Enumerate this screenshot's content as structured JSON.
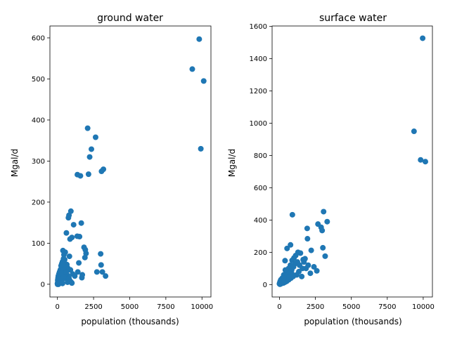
{
  "chart_data": [
    {
      "type": "scatter",
      "title": "ground water",
      "xlabel": "population (thousands)",
      "ylabel": "Mgal/d",
      "xlim": [
        -520,
        10620
      ],
      "ylim": [
        -31,
        629
      ],
      "xticks": [
        0,
        2500,
        5000,
        7500,
        10000
      ],
      "xtick_labels": [
        "0",
        "2500",
        "5000",
        "7500",
        "10000"
      ],
      "yticks": [
        0,
        100,
        200,
        300,
        400,
        500,
        600
      ],
      "ytick_labels": [
        "0",
        "100",
        "200",
        "300",
        "400",
        "500",
        "600"
      ],
      "grid": false,
      "marker_color": "#1f77b4",
      "x": [
        9810,
        9330,
        10120,
        9920,
        2090,
        2640,
        2350,
        2230,
        3180,
        3050,
        2150,
        1380,
        1590,
        930,
        800,
        760,
        1650,
        1120,
        620,
        1370,
        1530,
        1000,
        870,
        1840,
        1930,
        1980,
        1900,
        2990,
        3020,
        3110,
        2730,
        3330,
        1480,
        1720,
        1690,
        1410,
        380,
        540,
        830,
        450,
        300,
        280,
        200,
        150,
        100,
        60,
        40,
        20,
        500,
        650,
        700,
        900,
        1050,
        1200,
        250,
        350,
        420,
        480,
        520,
        580,
        620,
        680,
        720,
        760,
        820,
        880,
        950,
        1000,
        180,
        120,
        80,
        30,
        0,
        220,
        260,
        330,
        390,
        440,
        560,
        610,
        140,
        90,
        50,
        10,
        70,
        160,
        240,
        310,
        460,
        510,
        380,
        300,
        200,
        150,
        600,
        700,
        800,
        350
      ],
      "y": [
        597,
        524,
        495,
        330,
        380,
        358,
        329,
        310,
        280,
        275,
        268,
        267,
        264,
        178,
        168,
        162,
        149,
        145,
        125,
        117,
        116,
        114,
        110,
        90,
        84,
        75,
        65,
        74,
        47,
        30,
        30,
        20,
        52,
        23,
        16,
        30,
        82,
        78,
        68,
        72,
        50,
        40,
        35,
        30,
        25,
        20,
        15,
        10,
        60,
        48,
        40,
        35,
        25,
        20,
        45,
        55,
        62,
        52,
        44,
        38,
        30,
        22,
        18,
        12,
        10,
        8,
        5,
        3,
        28,
        18,
        12,
        6,
        2,
        33,
        38,
        42,
        48,
        36,
        26,
        16,
        8,
        5,
        2,
        0,
        0,
        4,
        6,
        10,
        14,
        20,
        24,
        28,
        12,
        3,
        30,
        5,
        15,
        2
      ]
    },
    {
      "type": "scatter",
      "title": "surface water",
      "xlabel": "population (thousands)",
      "ylabel": "Mgal/d",
      "xlim": [
        -510,
        10640
      ],
      "ylim": [
        -77,
        1603
      ],
      "xticks": [
        0,
        2500,
        5000,
        7500,
        10000
      ],
      "xtick_labels": [
        "0",
        "2500",
        "5000",
        "7500",
        "10000"
      ],
      "yticks": [
        0,
        200,
        400,
        600,
        800,
        1000,
        1200,
        1400,
        1600
      ],
      "ytick_labels": [
        "0",
        "200",
        "400",
        "600",
        "800",
        "1000",
        "1200",
        "1400",
        "1600"
      ],
      "grid": false,
      "marker_color": "#1f77b4",
      "x": [
        9960,
        9360,
        9820,
        10150,
        3070,
        900,
        3320,
        2680,
        2900,
        2970,
        1930,
        1950,
        3020,
        3180,
        2210,
        770,
        530,
        390,
        1650,
        1460,
        1290,
        1130,
        1010,
        880,
        760,
        640,
        520,
        410,
        300,
        200,
        100,
        50,
        20,
        0,
        1780,
        2400,
        2600,
        1550,
        2150,
        1850,
        1100,
        1250,
        1400,
        980,
        850,
        700,
        600,
        450,
        350,
        250,
        150,
        1700,
        2000,
        1600,
        1350,
        1200,
        950,
        800,
        650,
        500,
        380,
        280,
        180,
        80,
        30,
        60,
        120,
        220,
        320,
        420,
        560,
        680,
        780,
        880
      ],
      "y": [
        1527,
        950,
        773,
        762,
        452,
        433,
        390,
        375,
        355,
        335,
        348,
        284,
        228,
        176,
        212,
        246,
        224,
        148,
        155,
        195,
        200,
        180,
        165,
        150,
        120,
        100,
        80,
        90,
        60,
        40,
        30,
        20,
        10,
        5,
        160,
        110,
        85,
        50,
        70,
        100,
        130,
        140,
        120,
        110,
        90,
        70,
        60,
        50,
        40,
        30,
        20,
        140,
        120,
        100,
        80,
        60,
        50,
        40,
        30,
        20,
        15,
        10,
        8,
        5,
        2,
        3,
        6,
        12,
        18,
        25,
        35,
        45,
        55,
        65
      ]
    }
  ]
}
